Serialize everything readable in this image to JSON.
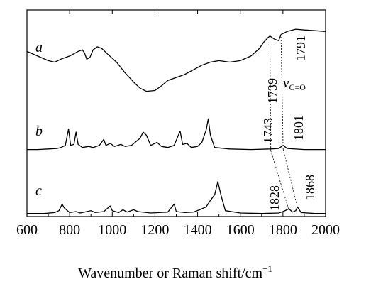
{
  "chart_data": {
    "type": "line",
    "title": "",
    "xlabel": "Wavenumber or Raman shift/cm",
    "xlabel_superscript": "−1",
    "ylabel": "",
    "xlim": [
      600,
      2000
    ],
    "xticks": [
      600,
      800,
      1000,
      1200,
      1400,
      1600,
      1800,
      2000
    ],
    "grid": false,
    "legend": "none",
    "series": [
      {
        "name": "a",
        "points": [
          [
            600,
            0.7
          ],
          [
            650,
            0.64
          ],
          [
            700,
            0.58
          ],
          [
            730,
            0.56
          ],
          [
            760,
            0.6
          ],
          [
            800,
            0.64
          ],
          [
            840,
            0.7
          ],
          [
            860,
            0.72
          ],
          [
            870,
            0.68
          ],
          [
            880,
            0.6
          ],
          [
            895,
            0.62
          ],
          [
            910,
            0.72
          ],
          [
            930,
            0.76
          ],
          [
            950,
            0.74
          ],
          [
            980,
            0.66
          ],
          [
            1020,
            0.56
          ],
          [
            1060,
            0.42
          ],
          [
            1100,
            0.3
          ],
          [
            1130,
            0.22
          ],
          [
            1160,
            0.18
          ],
          [
            1200,
            0.19
          ],
          [
            1230,
            0.25
          ],
          [
            1260,
            0.32
          ],
          [
            1300,
            0.36
          ],
          [
            1340,
            0.4
          ],
          [
            1380,
            0.46
          ],
          [
            1420,
            0.52
          ],
          [
            1460,
            0.56
          ],
          [
            1500,
            0.58
          ],
          [
            1550,
            0.56
          ],
          [
            1600,
            0.58
          ],
          [
            1650,
            0.64
          ],
          [
            1690,
            0.74
          ],
          [
            1710,
            0.82
          ],
          [
            1730,
            0.88
          ],
          [
            1739,
            0.9
          ],
          [
            1760,
            0.86
          ],
          [
            1780,
            0.84
          ],
          [
            1791,
            0.92
          ],
          [
            1820,
            0.96
          ],
          [
            1860,
            0.99
          ],
          [
            1900,
            0.98
          ],
          [
            1950,
            0.97
          ],
          [
            2000,
            0.96
          ]
        ]
      },
      {
        "name": "b",
        "points": [
          [
            600,
            0.02
          ],
          [
            650,
            0.02
          ],
          [
            700,
            0.03
          ],
          [
            740,
            0.04
          ],
          [
            760,
            0.06
          ],
          [
            780,
            0.1
          ],
          [
            795,
            0.42
          ],
          [
            805,
            0.1
          ],
          [
            820,
            0.12
          ],
          [
            830,
            0.36
          ],
          [
            840,
            0.12
          ],
          [
            860,
            0.06
          ],
          [
            890,
            0.08
          ],
          [
            910,
            0.06
          ],
          [
            940,
            0.1
          ],
          [
            960,
            0.22
          ],
          [
            970,
            0.1
          ],
          [
            990,
            0.14
          ],
          [
            1010,
            0.08
          ],
          [
            1040,
            0.12
          ],
          [
            1060,
            0.08
          ],
          [
            1090,
            0.1
          ],
          [
            1130,
            0.24
          ],
          [
            1145,
            0.36
          ],
          [
            1160,
            0.3
          ],
          [
            1180,
            0.1
          ],
          [
            1210,
            0.16
          ],
          [
            1230,
            0.08
          ],
          [
            1260,
            0.06
          ],
          [
            1290,
            0.1
          ],
          [
            1310,
            0.3
          ],
          [
            1318,
            0.38
          ],
          [
            1330,
            0.12
          ],
          [
            1350,
            0.14
          ],
          [
            1370,
            0.06
          ],
          [
            1400,
            0.08
          ],
          [
            1420,
            0.16
          ],
          [
            1440,
            0.4
          ],
          [
            1450,
            0.62
          ],
          [
            1460,
            0.3
          ],
          [
            1480,
            0.06
          ],
          [
            1550,
            0.03
          ],
          [
            1650,
            0.02
          ],
          [
            1740,
            0.03
          ],
          [
            1780,
            0.04
          ],
          [
            1801,
            0.1
          ],
          [
            1820,
            0.04
          ],
          [
            1900,
            0.02
          ],
          [
            2000,
            0.02
          ]
        ]
      },
      {
        "name": "c",
        "points": [
          [
            600,
            0.02
          ],
          [
            680,
            0.02
          ],
          [
            730,
            0.04
          ],
          [
            750,
            0.08
          ],
          [
            765,
            0.22
          ],
          [
            775,
            0.14
          ],
          [
            800,
            0.04
          ],
          [
            830,
            0.06
          ],
          [
            850,
            0.03
          ],
          [
            900,
            0.08
          ],
          [
            920,
            0.04
          ],
          [
            960,
            0.06
          ],
          [
            990,
            0.18
          ],
          [
            1000,
            0.08
          ],
          [
            1030,
            0.04
          ],
          [
            1050,
            0.1
          ],
          [
            1070,
            0.05
          ],
          [
            1100,
            0.1
          ],
          [
            1120,
            0.06
          ],
          [
            1180,
            0.03
          ],
          [
            1220,
            0.04
          ],
          [
            1260,
            0.05
          ],
          [
            1290,
            0.22
          ],
          [
            1300,
            0.06
          ],
          [
            1340,
            0.04
          ],
          [
            1380,
            0.05
          ],
          [
            1410,
            0.1
          ],
          [
            1440,
            0.16
          ],
          [
            1460,
            0.3
          ],
          [
            1480,
            0.42
          ],
          [
            1495,
            0.7
          ],
          [
            1510,
            0.4
          ],
          [
            1530,
            0.08
          ],
          [
            1600,
            0.03
          ],
          [
            1700,
            0.02
          ],
          [
            1780,
            0.03
          ],
          [
            1800,
            0.06
          ],
          [
            1828,
            0.12
          ],
          [
            1845,
            0.05
          ],
          [
            1860,
            0.08
          ],
          [
            1868,
            0.16
          ],
          [
            1885,
            0.04
          ],
          [
            1950,
            0.02
          ],
          [
            2000,
            0.02
          ]
        ]
      }
    ],
    "annotations": [
      {
        "id": "p1739",
        "text": "1739",
        "x": 1739
      },
      {
        "id": "p1791",
        "text": "1791",
        "x": 1791
      },
      {
        "id": "p1743",
        "text": "1743",
        "x": 1743
      },
      {
        "id": "p1801",
        "text": "1801",
        "x": 1801
      },
      {
        "id": "p1828",
        "text": "1828",
        "x": 1828
      },
      {
        "id": "p1868",
        "text": "1868",
        "x": 1868
      }
    ],
    "nu_label": {
      "symbol": "v",
      "subscript": "C=O"
    }
  },
  "colors": {
    "line": "#000000",
    "axis": "#000000",
    "guide": "#000000"
  }
}
